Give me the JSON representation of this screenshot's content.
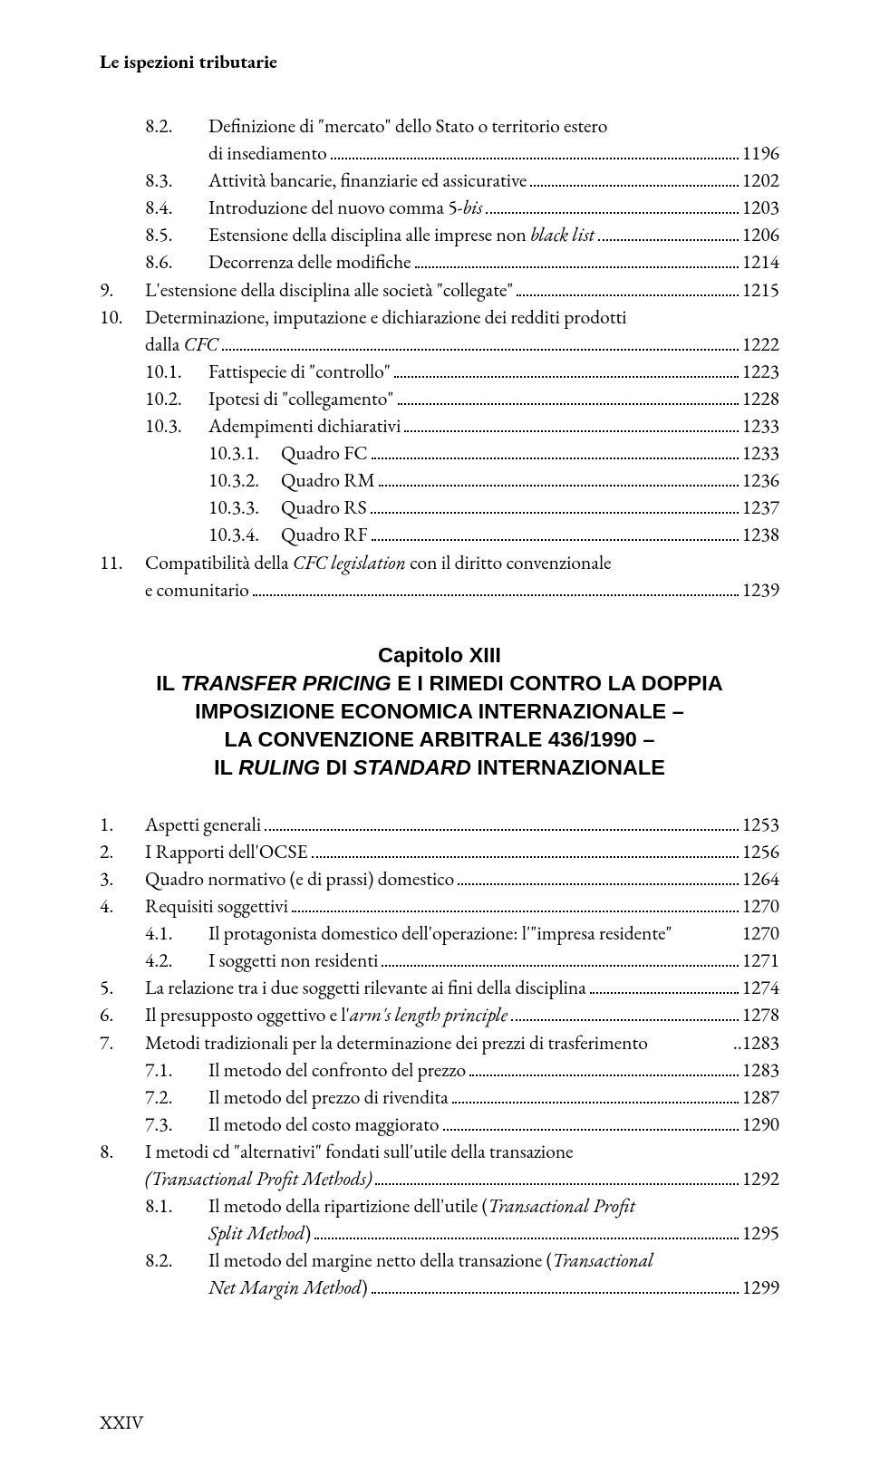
{
  "running_head": "Le ispezioni tributarie",
  "footer_page": "XXIV",
  "chapter": {
    "label": "Capitolo XIII",
    "title_lines": [
      "IL <i>TRANSFER PRICING</i> E I RIMEDI CONTRO LA DOPPIA",
      "IMPOSIZIONE ECONOMICA INTERNAZIONALE –",
      "LA CONVENZIONE ARBITRALE 436/1990 –",
      "IL <i>RULING</i> DI <i>STANDARD</i> INTERNAZIONALE"
    ]
  },
  "entries_top": [
    {
      "lvl": 2,
      "label": "8.2.",
      "html": "Definizione di \"mercato\" dello Stato o territorio estero",
      "wrap": "di insediamento",
      "page": "1196"
    },
    {
      "lvl": 2,
      "label": "8.3.",
      "html": "Attività bancarie, finanziarie ed assicurative",
      "page": "1202"
    },
    {
      "lvl": 2,
      "label": "8.4.",
      "html": "Introduzione del nuovo comma 5-<i>bis</i>",
      "page": "1203"
    },
    {
      "lvl": 2,
      "label": "8.5.",
      "html": "Estensione della disciplina alle imprese non <i>black list</i>",
      "page": "1206"
    },
    {
      "lvl": 2,
      "label": "8.6.",
      "html": "Decorrenza delle modifiche",
      "page": "1214"
    },
    {
      "lvl": 1,
      "label": "9.",
      "html": "L'estensione della disciplina alle società \"collegate\"",
      "page": "1215"
    },
    {
      "lvl": 1,
      "label": "10.",
      "html": "Determinazione, imputazione e dichiarazione dei redditi prodotti",
      "wrap_html": "dalla <i>CFC</i>",
      "page": "1222"
    },
    {
      "lvl": 2,
      "label": "10.1.",
      "html": "Fattispecie di \"controllo\"",
      "page": "1223"
    },
    {
      "lvl": 2,
      "label": "10.2.",
      "html": "Ipotesi di \"collegamento\"",
      "page": "1228"
    },
    {
      "lvl": 2,
      "label": "10.3.",
      "html": "Adempimenti dichiarativi",
      "page": "1233"
    },
    {
      "lvl": 3,
      "label": "10.3.1.",
      "html": "Quadro FC",
      "page": "1233"
    },
    {
      "lvl": 3,
      "label": "10.3.2.",
      "html": "Quadro RM",
      "page": "1236"
    },
    {
      "lvl": 3,
      "label": "10.3.3.",
      "html": "Quadro RS",
      "page": "1237"
    },
    {
      "lvl": 3,
      "label": "10.3.4.",
      "html": "Quadro RF",
      "page": "1238"
    },
    {
      "lvl": 1,
      "label": "11.",
      "html": "Compatibilità della <i>CFC legislation</i> con il diritto convenzionale",
      "wrap": "e comunitario",
      "page": "1239"
    }
  ],
  "entries_bottom": [
    {
      "lvl": 1,
      "label": "1.",
      "html": "Aspetti generali",
      "page": "1253"
    },
    {
      "lvl": 1,
      "label": "2.",
      "html": "I Rapporti dell'OCSE",
      "page": "1256"
    },
    {
      "lvl": 1,
      "label": "3.",
      "html": "Quadro normativo (e di prassi) domestico",
      "page": "1264"
    },
    {
      "lvl": 1,
      "label": "4.",
      "html": "Requisiti soggettivi",
      "page": "1270"
    },
    {
      "lvl": 2,
      "label": "4.1.",
      "html": "Il protagonista domestico dell'operazione: l'\"impresa residente\"",
      "page": "1270",
      "nodots": true
    },
    {
      "lvl": 2,
      "label": "4.2.",
      "html": "I soggetti non residenti",
      "page": "1271"
    },
    {
      "lvl": 1,
      "label": "5.",
      "html": "La relazione tra i due soggetti rilevante ai fini della disciplina",
      "page": "1274"
    },
    {
      "lvl": 1,
      "label": "6.",
      "html": "Il presupposto oggettivo e l'<i>arm's length principle</i>",
      "page": "1278"
    },
    {
      "lvl": 1,
      "label": "7.",
      "html": "Metodi tradizionali per la determinazione dei prezzi di trasferimento",
      "page": "1283",
      "nodots": true,
      "sep": ".."
    },
    {
      "lvl": 2,
      "label": "7.1.",
      "html": "Il metodo del confronto del prezzo",
      "page": "1283"
    },
    {
      "lvl": 2,
      "label": "7.2.",
      "html": "Il metodo del prezzo di rivendita",
      "page": "1287"
    },
    {
      "lvl": 2,
      "label": "7.3.",
      "html": "Il metodo del costo maggiorato",
      "page": "1290"
    },
    {
      "lvl": 1,
      "label": "8.",
      "html": "I metodi cd \"alternativi\" fondati sull'utile della transazione",
      "wrap_html": "<i>(Transactional Profit Methods)</i>",
      "page": "1292"
    },
    {
      "lvl": 2,
      "label": "8.1.",
      "html": "Il metodo della ripartizione dell'utile (<i>Transactional Profit</i>",
      "wrap_html": "<i>Split Method</i>)",
      "wrap_indent": "lvl3",
      "page": "1295"
    },
    {
      "lvl": 2,
      "label": "8.2.",
      "html": "Il metodo del margine netto della transazione (<i>Transactional</i>",
      "wrap_html": "<i>Net Margin Method</i>)",
      "wrap_indent": "lvl3",
      "page": "1299"
    }
  ]
}
